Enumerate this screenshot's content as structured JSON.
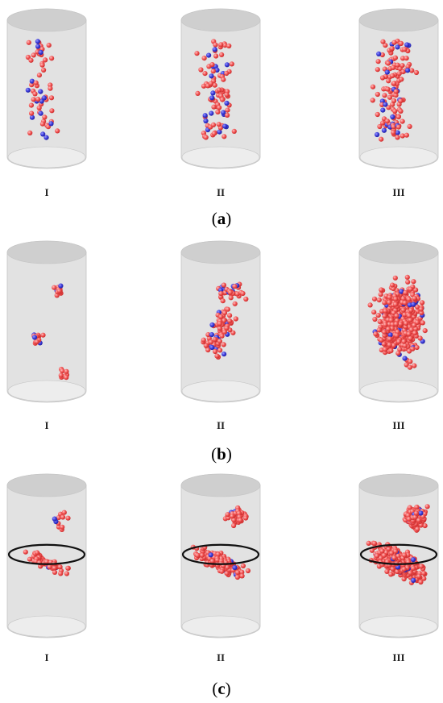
{
  "colors": {
    "cylinder_fill": "#e2e2e2",
    "cylinder_stroke": "#c4c4c4",
    "cap_top": "#cfcfcf",
    "cap_bottom": "#ededed",
    "red_event": "#f05050",
    "blue_event": "#3a3ad8",
    "fracture_ring": "#111111"
  },
  "stage_labels": [
    "I",
    "II",
    "III"
  ],
  "panels": [
    {
      "id": "a",
      "caption_open": "(",
      "caption_letter": "a",
      "caption_close": ")",
      "stages": [
        {
          "red": 45,
          "blue": 14,
          "ring": false
        },
        {
          "red": 75,
          "blue": 20,
          "ring": false
        },
        {
          "red": 110,
          "blue": 22,
          "ring": false
        }
      ]
    },
    {
      "id": "b",
      "caption_open": "(",
      "caption_letter": "b",
      "caption_close": ")",
      "stages": [
        {
          "red": 30,
          "blue": 5,
          "ring": false
        },
        {
          "red": 95,
          "blue": 20,
          "ring": false
        },
        {
          "red": 520,
          "blue": 35,
          "ring": false
        }
      ]
    },
    {
      "id": "c",
      "caption_open": "(",
      "caption_letter": "c",
      "caption_close": ")",
      "stages": [
        {
          "red": 80,
          "blue": 6,
          "ring": true
        },
        {
          "red": 240,
          "blue": 18,
          "ring": true
        },
        {
          "red": 560,
          "blue": 35,
          "ring": true
        }
      ]
    }
  ]
}
